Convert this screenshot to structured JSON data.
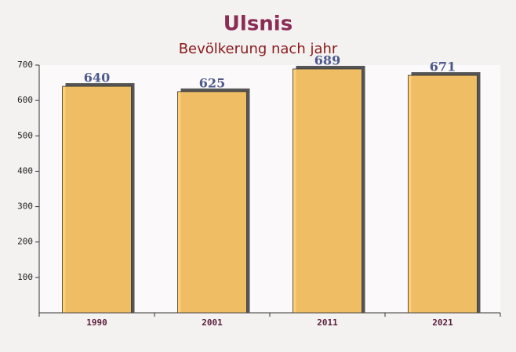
{
  "chart_data": {
    "type": "bar",
    "title": "Ulsnis",
    "subtitle": "Bevölkerung nach jahr",
    "categories": [
      "1990",
      "2001",
      "2011",
      "2021"
    ],
    "values": [
      640,
      625,
      689,
      671
    ],
    "color": "#ffc966",
    "ylim": [
      0,
      700
    ],
    "yticks": [
      100,
      200,
      300,
      400,
      500,
      600,
      700
    ]
  }
}
